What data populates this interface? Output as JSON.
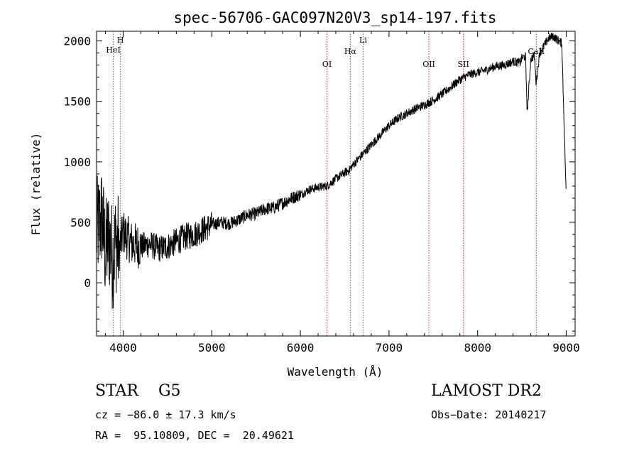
{
  "chart_data": {
    "type": "line",
    "title": "spec-56706-GAC097N20V3_sp14-197.fits",
    "xlabel": "Wavelength (Å)",
    "ylabel": "Flux (relative)",
    "xlim": [
      3700,
      9100
    ],
    "ylim": [
      -440,
      2080
    ],
    "xticks": [
      "4000",
      "5000",
      "6000",
      "7000",
      "8000",
      "9000"
    ],
    "yticks": [
      "0",
      "500",
      "1000",
      "1500",
      "2000"
    ],
    "xtick_values": [
      4000,
      5000,
      6000,
      7000,
      8000,
      9000
    ],
    "ytick_values": [
      0,
      500,
      1000,
      1500,
      2000
    ],
    "series": [
      {
        "x": [
          3700,
          3760,
          3800,
          3840,
          3880,
          3920,
          3960,
          4000,
          4100,
          4200,
          4300,
          4400,
          4500,
          4600,
          4700,
          4800,
          4900,
          5000,
          5100,
          5200,
          5300,
          5400,
          5500,
          5600,
          5700,
          5800,
          5900,
          6000,
          6100,
          6200,
          6300,
          6350,
          6400,
          6500,
          6550,
          6600,
          6700,
          6800,
          6900,
          7000,
          7100,
          7200,
          7300,
          7400,
          7500,
          7600,
          7700,
          7800,
          7900,
          8000,
          8100,
          8200,
          8300,
          8400,
          8480,
          8500,
          8540,
          8560,
          8600,
          8640,
          8660,
          8700,
          8750,
          8800,
          8850,
          8900,
          8950,
          9000
        ],
        "values": [
          420,
          550,
          250,
          380,
          200,
          350,
          280,
          420,
          320,
          300,
          320,
          280,
          300,
          340,
          380,
          400,
          440,
          480,
          500,
          490,
          520,
          560,
          570,
          610,
          620,
          660,
          700,
          730,
          770,
          790,
          800,
          830,
          860,
          910,
          930,
          980,
          1060,
          1140,
          1220,
          1300,
          1360,
          1400,
          1440,
          1470,
          1510,
          1560,
          1620,
          1680,
          1720,
          1740,
          1760,
          1790,
          1800,
          1830,
          1820,
          1860,
          1870,
          1400,
          1850,
          1880,
          1650,
          1900,
          1960,
          2020,
          2040,
          2010,
          1980,
          700
        ]
      }
    ],
    "spectral_lines": [
      {
        "label": "HeI",
        "x": 3889
      },
      {
        "label": "H",
        "x": 3970
      },
      {
        "label": "OI",
        "x": 6300
      },
      {
        "label": "Hα",
        "x": 6563
      },
      {
        "label": "Li",
        "x": 6708
      },
      {
        "label": "OII",
        "x": 7450
      },
      {
        "label": "SII",
        "x": 7840
      },
      {
        "label": "CaII",
        "x": 8662
      }
    ],
    "grid": false,
    "line_color": "#000000",
    "marker_color": "#cc3333"
  },
  "info": {
    "class": "STAR    G5",
    "survey": "LAMOST DR2",
    "cz": "cz = −86.0 ± 17.3 km/s",
    "obs_date": "Obs−Date: 20140217",
    "radec": "RA =  95.10809, DEC =  20.49621"
  }
}
